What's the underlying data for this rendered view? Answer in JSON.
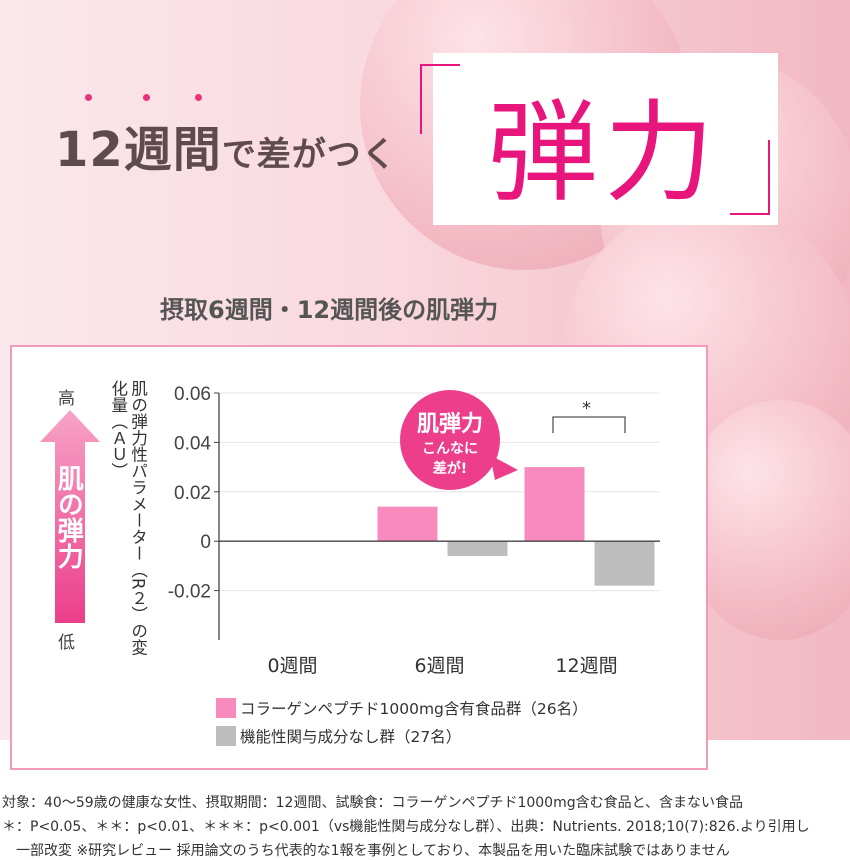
{
  "headline": {
    "main": "12週間",
    "rest": "で差がつく",
    "emphasis": "弾力"
  },
  "subtitle": "摂取6週間・12週間後の肌弾力",
  "side": {
    "high": "高",
    "low": "低",
    "arrow_label": "肌の弾力"
  },
  "bubble": {
    "line1": "肌弾力",
    "line2": "こんなに",
    "line3": "差が!"
  },
  "significance": "*",
  "colors": {
    "accent": "#e8157c",
    "pink_bar": "#f78bbd",
    "gray_bar": "#bdbdbd"
  },
  "chart_data": {
    "type": "bar",
    "ylabel": "肌の弾力性パラメーター（R２）の変化量（ＡＵ）",
    "categories": [
      "0週間",
      "6週間",
      "12週間"
    ],
    "series": [
      {
        "name": "コラーゲンペプチド1000mg含有食品群（26名）",
        "values": [
          0,
          0.014,
          0.03
        ],
        "color": "#f78bbd"
      },
      {
        "name": "機能性関与成分なし群（27名）",
        "values": [
          0,
          -0.006,
          -0.018
        ],
        "color": "#bdbdbd"
      }
    ],
    "yticks": [
      "0.06",
      "0.04",
      "0.02",
      "0",
      "-0.02"
    ],
    "ylim": [
      -0.04,
      0.06
    ],
    "grid": true,
    "legend": "bottom"
  },
  "footnotes": [
    "対象：40～59歳の健康な女性、摂取期間：12週間、試験食：コラーゲンペプチド1000mg含む食品と、含まない食品",
    "＊：P<0.05、＊＊：p<0.01、＊＊＊：p<0.001（vs機能性関与成分なし群）、出典：Nutrients. 2018;10(7):826.より引用し",
    "一部改変 ※研究レビュー 採用論文のうち代表的な1報を事例としており、本製品を用いた臨床試験ではありません"
  ]
}
